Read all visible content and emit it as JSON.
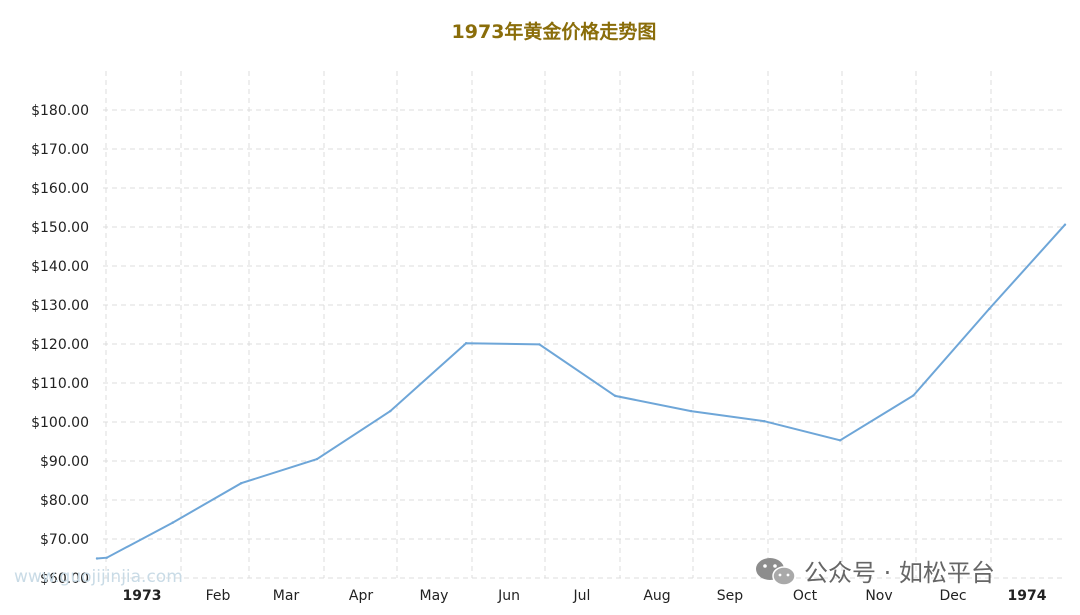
{
  "title": "1973年黄金价格走势图",
  "watermark": {
    "site": "www.guojijinjia.com",
    "account": "公众号 · 如松平台",
    "icon": "wechat-icon"
  },
  "colors": {
    "line": "#6ea6d8",
    "title": "#8a6d0a",
    "grid": "#dcdcdc"
  },
  "chart_data": {
    "type": "line",
    "title": "1973年黄金价格走势图",
    "xlabel": "",
    "ylabel": "",
    "ylim": [
      60,
      180
    ],
    "grid": true,
    "legend": "none",
    "yticks": [
      60,
      70,
      80,
      90,
      100,
      110,
      120,
      130,
      140,
      150,
      160,
      170,
      180
    ],
    "ytick_labels": [
      "$60.00",
      "$70.00",
      "$80.00",
      "$90.00",
      "$100.00",
      "$110.00",
      "$120.00",
      "$130.00",
      "$140.00",
      "$150.00",
      "$160.00",
      "$170.00",
      "$180.00"
    ],
    "xtick_labels": [
      {
        "label": "1973",
        "year": true
      },
      {
        "label": "Feb",
        "year": false
      },
      {
        "label": "Mar",
        "year": false
      },
      {
        "label": "Apr",
        "year": false
      },
      {
        "label": "May",
        "year": false
      },
      {
        "label": "Jun",
        "year": false
      },
      {
        "label": "Jul",
        "year": false
      },
      {
        "label": "Aug",
        "year": false
      },
      {
        "label": "Sep",
        "year": false
      },
      {
        "label": "Oct",
        "year": false
      },
      {
        "label": "Nov",
        "year": false
      },
      {
        "label": "Dec",
        "year": false
      },
      {
        "label": "1974",
        "year": true
      }
    ],
    "series": [
      {
        "values": [
          {
            "x": "1973-01-01",
            "y": 65.0
          },
          {
            "x": "1973-01-05",
            "y": 65.2
          },
          {
            "x": "1973-02-01",
            "y": 74.2
          },
          {
            "x": "1973-03-01",
            "y": 84.3
          },
          {
            "x": "1973-04-01",
            "y": 90.5
          },
          {
            "x": "1973-05-01",
            "y": 102.8
          },
          {
            "x": "1973-06-01",
            "y": 120.2
          },
          {
            "x": "1973-07-01",
            "y": 119.9
          },
          {
            "x": "1973-08-01",
            "y": 106.7
          },
          {
            "x": "1973-09-01",
            "y": 102.8
          },
          {
            "x": "1973-10-01",
            "y": 100.2
          },
          {
            "x": "1973-11-01",
            "y": 95.3
          },
          {
            "x": "1973-12-01",
            "y": 106.8
          },
          {
            "x": "1974-01-01",
            "y": 129.0
          },
          {
            "x": "1974-02-01",
            "y": 150.6
          }
        ]
      }
    ]
  }
}
